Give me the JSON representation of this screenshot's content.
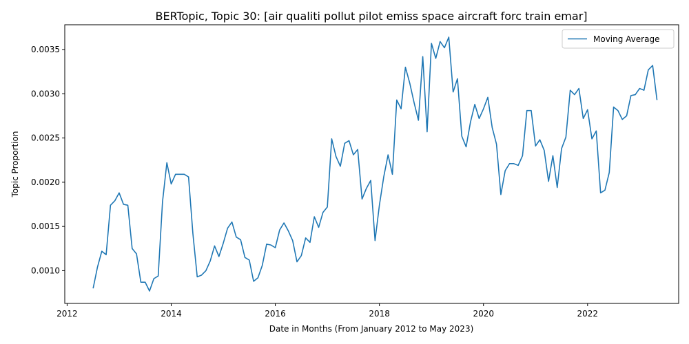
{
  "chart_data": {
    "type": "line",
    "title": "BERTopic, Topic 30: [air qualiti pollut pilot emiss space aircraft forc train emar]",
    "xlabel": "Date in Months (From January 2012 to May 2023)",
    "ylabel": "Topic Proportion",
    "xlim": [
      "2011-12-15",
      "2023-10-01"
    ],
    "ylim": [
      0.00063,
      0.00378
    ],
    "x_ticks": [
      "2012",
      "2014",
      "2016",
      "2018",
      "2020",
      "2022"
    ],
    "y_ticks": [
      "0.0010",
      "0.0015",
      "0.0020",
      "0.0025",
      "0.0030",
      "0.0035"
    ],
    "grid": false,
    "legend_position": "top-right",
    "series": [
      {
        "name": "Moving Average",
        "color": "#1f77b4",
        "x": [
          "2012-07",
          "2012-08",
          "2012-09",
          "2012-10",
          "2012-11",
          "2012-12",
          "2013-01",
          "2013-02",
          "2013-03",
          "2013-04",
          "2013-05",
          "2013-06",
          "2013-07",
          "2013-08",
          "2013-09",
          "2013-10",
          "2013-11",
          "2013-12",
          "2014-01",
          "2014-02",
          "2014-03",
          "2014-04",
          "2014-05",
          "2014-06",
          "2014-07",
          "2014-08",
          "2014-09",
          "2014-10",
          "2014-11",
          "2014-12",
          "2015-01",
          "2015-02",
          "2015-03",
          "2015-04",
          "2015-05",
          "2015-06",
          "2015-07",
          "2015-08",
          "2015-09",
          "2015-10",
          "2015-11",
          "2015-12",
          "2016-01",
          "2016-02",
          "2016-03",
          "2016-04",
          "2016-05",
          "2016-06",
          "2016-07",
          "2016-08",
          "2016-09",
          "2016-10",
          "2016-11",
          "2016-12",
          "2017-01",
          "2017-02",
          "2017-03",
          "2017-04",
          "2017-05",
          "2017-06",
          "2017-07",
          "2017-08",
          "2017-09",
          "2017-10",
          "2017-11",
          "2017-12",
          "2018-01",
          "2018-02",
          "2018-03",
          "2018-04",
          "2018-05",
          "2018-06",
          "2018-07",
          "2018-08",
          "2018-09",
          "2018-10",
          "2018-11",
          "2018-12",
          "2019-01",
          "2019-02",
          "2019-03",
          "2019-04",
          "2019-05",
          "2019-06",
          "2019-07",
          "2019-08",
          "2019-09",
          "2019-10",
          "2019-11",
          "2019-12",
          "2020-01",
          "2020-02",
          "2020-03",
          "2020-04",
          "2020-05",
          "2020-06",
          "2020-07",
          "2020-08",
          "2020-09",
          "2020-10",
          "2020-11",
          "2020-12",
          "2021-01",
          "2021-02",
          "2021-03",
          "2021-04",
          "2021-05",
          "2021-06",
          "2021-07",
          "2021-08",
          "2021-09",
          "2021-10",
          "2021-11",
          "2021-12",
          "2022-01",
          "2022-02",
          "2022-03",
          "2022-04",
          "2022-05",
          "2022-06",
          "2022-07",
          "2022-08",
          "2022-09",
          "2022-10",
          "2022-11",
          "2022-12",
          "2023-01",
          "2023-02",
          "2023-03",
          "2023-04",
          "2023-05"
        ],
        "y": [
          0.0008,
          0.00104,
          0.00122,
          0.00118,
          0.00174,
          0.00179,
          0.00188,
          0.00175,
          0.00174,
          0.00125,
          0.00119,
          0.00087,
          0.00087,
          0.00077,
          0.00091,
          0.00094,
          0.00178,
          0.00222,
          0.00198,
          0.00209,
          0.00209,
          0.00209,
          0.00206,
          0.00142,
          0.00093,
          0.00095,
          0.001,
          0.00111,
          0.00128,
          0.00116,
          0.00131,
          0.00148,
          0.00155,
          0.00138,
          0.00135,
          0.00115,
          0.00112,
          0.00088,
          0.00092,
          0.00106,
          0.0013,
          0.00129,
          0.00126,
          0.00146,
          0.00154,
          0.00145,
          0.00134,
          0.0011,
          0.00117,
          0.00137,
          0.00132,
          0.00161,
          0.00149,
          0.00166,
          0.00172,
          0.00249,
          0.00229,
          0.00218,
          0.00244,
          0.00247,
          0.00231,
          0.00237,
          0.00181,
          0.00193,
          0.00202,
          0.00134,
          0.00174,
          0.00206,
          0.00231,
          0.00209,
          0.00293,
          0.00283,
          0.0033,
          0.00312,
          0.0029,
          0.0027,
          0.00342,
          0.00257,
          0.00357,
          0.0034,
          0.00359,
          0.00352,
          0.00364,
          0.00302,
          0.00317,
          0.00252,
          0.0024,
          0.00268,
          0.00288,
          0.00272,
          0.00283,
          0.00296,
          0.00262,
          0.00243,
          0.00186,
          0.00213,
          0.00221,
          0.00221,
          0.00219,
          0.0023,
          0.00281,
          0.00281,
          0.00241,
          0.00248,
          0.00236,
          0.00201,
          0.0023,
          0.00194,
          0.00238,
          0.00251,
          0.00304,
          0.00299,
          0.00306,
          0.00272,
          0.00282,
          0.00249,
          0.00258,
          0.00188,
          0.00191,
          0.00211,
          0.00285,
          0.00281,
          0.00271,
          0.00275,
          0.00298,
          0.00299,
          0.00306,
          0.00304,
          0.00327,
          0.00332,
          0.00293
        ]
      }
    ]
  }
}
